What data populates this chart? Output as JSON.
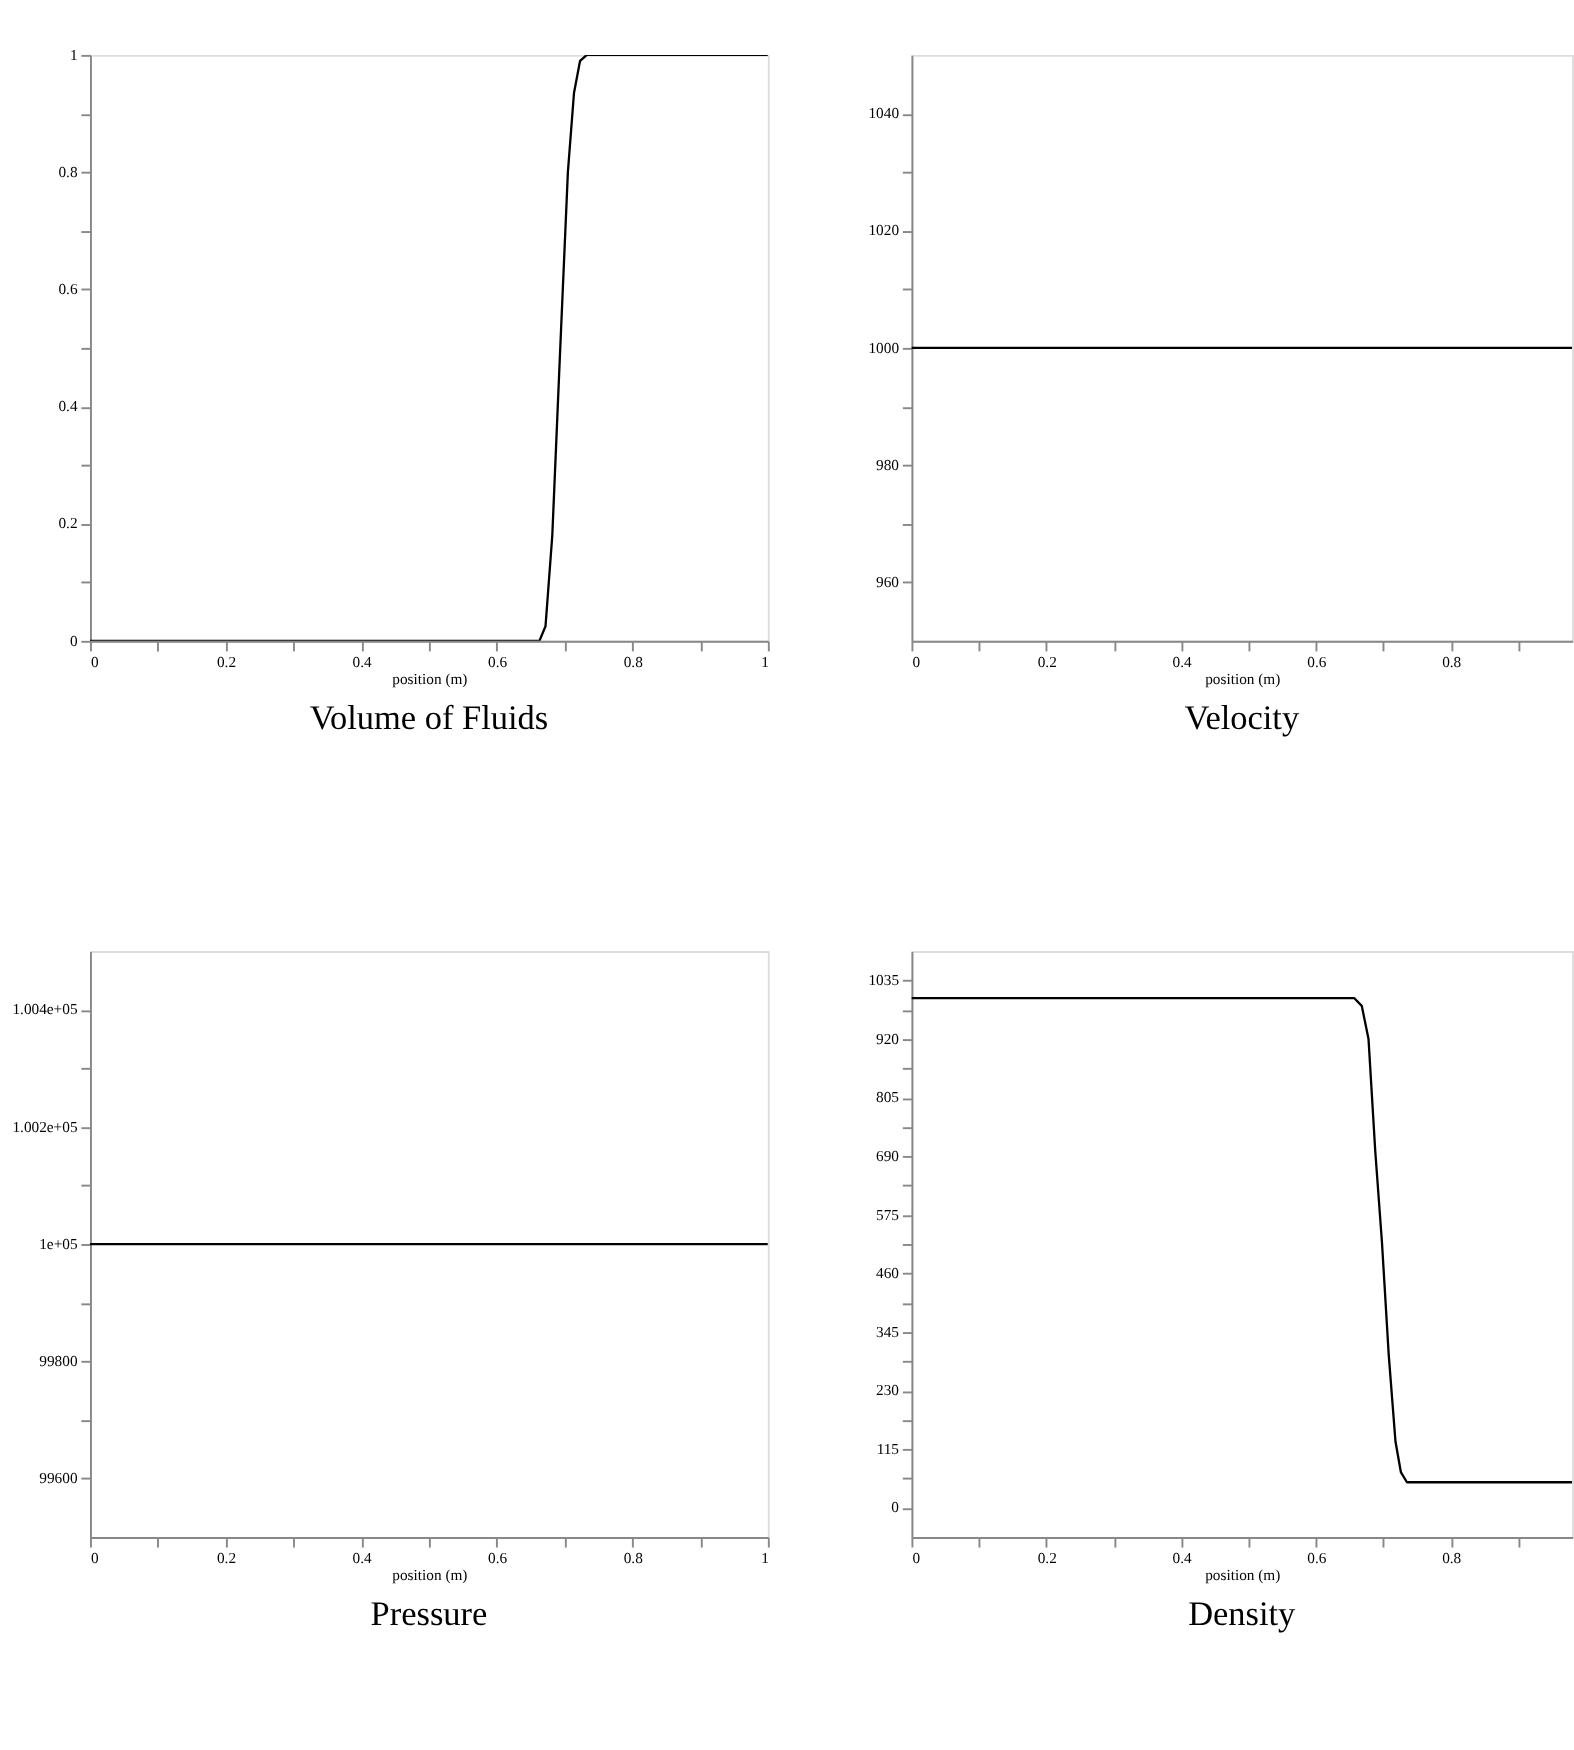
{
  "chart_data": [
    {
      "type": "line",
      "title": "Volume of Fluids",
      "xlabel": "position (m)",
      "color": "#000000",
      "grid": false,
      "x": [
        0,
        0.663,
        0.672,
        0.682,
        0.693,
        0.705,
        0.714,
        0.723,
        0.733,
        1
      ],
      "values": [
        0,
        0,
        0.025,
        0.18,
        0.48,
        0.8,
        0.935,
        0.99,
        1,
        1
      ],
      "xlim": [
        0,
        1
      ],
      "xticks": [
        0,
        {
          "value": 0.1,
          "label": null
        },
        0.2,
        {
          "value": 0.3,
          "label": null
        },
        0.4,
        {
          "value": 0.5,
          "label": null
        },
        0.6,
        {
          "value": 0.7,
          "label": null
        },
        0.8,
        {
          "value": 0.9,
          "label": null
        },
        1
      ],
      "ylim": [
        0,
        1
      ],
      "yticks": [
        0,
        {
          "value": 0.1,
          "label": null
        },
        0.2,
        {
          "value": 0.3,
          "label": null
        },
        0.4,
        {
          "value": 0.5,
          "label": null
        },
        0.6,
        {
          "value": 0.7,
          "label": null
        },
        0.8,
        {
          "value": 0.9,
          "label": null
        },
        1
      ]
    },
    {
      "type": "line",
      "title": "Velocity",
      "xlabel": "position (m)",
      "color": "#000000",
      "grid": false,
      "x": [
        0,
        0.98
      ],
      "values": [
        1000,
        1000
      ],
      "xlim": [
        0,
        0.98
      ],
      "xticks": [
        0,
        {
          "value": 0.1,
          "label": null
        },
        0.2,
        {
          "value": 0.3,
          "label": null
        },
        0.4,
        {
          "value": 0.5,
          "label": null
        },
        0.6,
        {
          "value": 0.7,
          "label": null
        },
        0.8,
        {
          "value": 0.9,
          "label": null
        }
      ],
      "ylim": [
        950,
        1050
      ],
      "yticks": [
        960,
        {
          "value": 970,
          "label": null
        },
        980,
        {
          "value": 990,
          "label": null
        },
        1000,
        {
          "value": 1010,
          "label": null
        },
        1020,
        {
          "value": 1030,
          "label": null
        },
        1040
      ]
    },
    {
      "type": "line",
      "title": "Pressure",
      "xlabel": "position (m)",
      "color": "#000000",
      "grid": false,
      "x": [
        0,
        1
      ],
      "values": [
        100000,
        100000
      ],
      "xlim": [
        0,
        1
      ],
      "xticks": [
        0,
        {
          "value": 0.1,
          "label": null
        },
        0.2,
        {
          "value": 0.3,
          "label": null
        },
        0.4,
        {
          "value": 0.5,
          "label": null
        },
        0.6,
        {
          "value": 0.7,
          "label": null
        },
        0.8,
        {
          "value": 0.9,
          "label": null
        },
        1
      ],
      "ylim": [
        99500,
        100500
      ],
      "yticks": [
        99600,
        {
          "value": 99700,
          "label": null
        },
        99800,
        {
          "value": 99900,
          "label": null
        },
        {
          "value": 100000,
          "label": "1e+05"
        },
        {
          "value": 100100,
          "label": null
        },
        {
          "value": 100200,
          "label": "1.002e+05"
        },
        {
          "value": 100300,
          "label": null
        },
        {
          "value": 100400,
          "label": "1.004e+05"
        }
      ]
    },
    {
      "type": "line",
      "title": "Density",
      "xlabel": "position (m)",
      "color": "#000000",
      "grid": false,
      "x": [
        0,
        0.657,
        0.668,
        0.678,
        0.688,
        0.698,
        0.708,
        0.718,
        0.726,
        0.735,
        0.98
      ],
      "values": [
        1000,
        1000,
        985,
        920,
        700,
        520,
        300,
        130,
        70,
        50,
        50
      ],
      "xlim": [
        0,
        0.98
      ],
      "xticks": [
        0,
        {
          "value": 0.1,
          "label": null
        },
        0.2,
        {
          "value": 0.3,
          "label": null
        },
        0.4,
        {
          "value": 0.5,
          "label": null
        },
        0.6,
        {
          "value": 0.7,
          "label": null
        },
        0.8,
        {
          "value": 0.9,
          "label": null
        }
      ],
      "ylim": [
        -57.5,
        1092.5
      ],
      "yticks": [
        0,
        {
          "value": 57.5,
          "label": null
        },
        115,
        {
          "value": 172.5,
          "label": null
        },
        230,
        {
          "value": 287.5,
          "label": null
        },
        345,
        {
          "value": 402.5,
          "label": null
        },
        460,
        {
          "value": 517.5,
          "label": null
        },
        575,
        {
          "value": 632.5,
          "label": null
        },
        690,
        {
          "value": 747.5,
          "label": null
        },
        805,
        {
          "value": 862.5,
          "label": null
        },
        920,
        {
          "value": 977.5,
          "label": null
        },
        1035
      ]
    }
  ]
}
